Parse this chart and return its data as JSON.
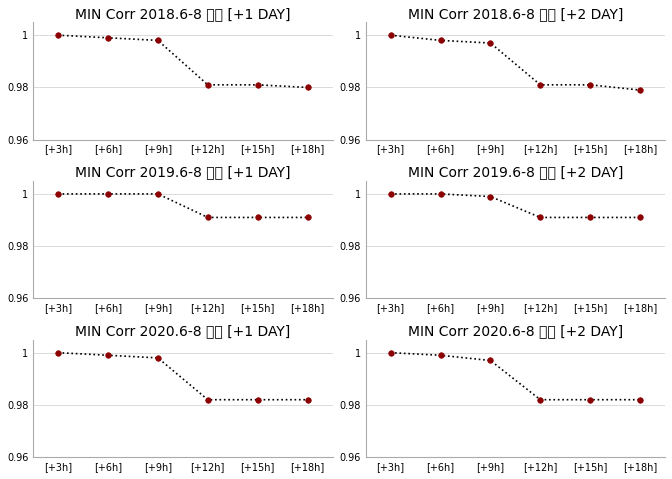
{
  "titles": [
    "MIN Corr 2018.6-8 평균 [+1 DAY]",
    "MIN Corr 2018.6-8 평균 [+2 DAY]",
    "MIN Corr 2019.6-8 평균 [+1 DAY]",
    "MIN Corr 2019.6-8 평균 [+2 DAY]",
    "MIN Corr 2020.6-8 평균 [+1 DAY]",
    "MIN Corr 2020.6-8 평균 [+2 DAY]"
  ],
  "x_labels": [
    "[+3h]",
    "[+6h]",
    "[+9h]",
    "[+12h]",
    "[+15h]",
    "[+18h]"
  ],
  "series": [
    [
      1.0,
      0.999,
      0.998,
      0.981,
      0.981,
      0.98
    ],
    [
      1.0,
      0.998,
      0.997,
      0.981,
      0.981,
      0.979
    ],
    [
      1.0,
      1.0,
      1.0,
      0.991,
      0.991,
      0.991
    ],
    [
      1.0,
      1.0,
      0.999,
      0.991,
      0.991,
      0.991
    ],
    [
      1.0,
      0.999,
      0.998,
      0.982,
      0.982,
      0.982
    ],
    [
      1.0,
      0.999,
      0.997,
      0.982,
      0.982,
      0.982
    ]
  ],
  "ylim": [
    0.96,
    1.005
  ],
  "yticks": [
    0.96,
    0.98,
    1.0
  ],
  "marker_color": "#8B0000",
  "line_color": "#000000",
  "bg_color": "#ffffff",
  "title_fontsize": 8,
  "tick_fontsize": 7,
  "figsize": [
    6.72,
    4.79
  ],
  "dpi": 100
}
